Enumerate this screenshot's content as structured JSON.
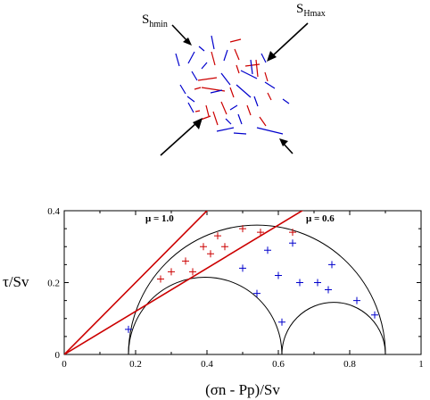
{
  "stress_labels": {
    "shmin": {
      "main": "S",
      "sub": "hmin"
    },
    "shmax": {
      "main": "S",
      "sub": "Hmax"
    }
  },
  "friction_labels": {
    "upper": "μ = 1.0",
    "lower": "μ = 0.6"
  },
  "colors": {
    "red": "#cc0000",
    "blue": "#0000cc",
    "axis": "#000000",
    "circle": "#000000"
  },
  "chart_data": {
    "type": "scatter",
    "title": "",
    "xlabel": "(σn - Pp)/Sv",
    "ylabel": "τ/Sv",
    "xlim": [
      0,
      1
    ],
    "ylim": [
      0,
      0.4
    ],
    "x_ticks": [
      "0",
      "0.2",
      "0.4",
      "0.6",
      "0.8",
      "1"
    ],
    "y_ticks": [
      "0",
      "0.2",
      "0.4"
    ],
    "friction_lines": [
      {
        "mu": 1.0,
        "color": "#cc0000"
      },
      {
        "mu": 0.6,
        "color": "#cc0000"
      }
    ],
    "mohr_circles": [
      {
        "center": 0.54,
        "radius": 0.36
      },
      {
        "center": 0.395,
        "radius": 0.215
      },
      {
        "center": 0.755,
        "radius": 0.145
      }
    ],
    "series": [
      {
        "color": "#cc0000",
        "x": [
          0.27,
          0.3,
          0.34,
          0.36,
          0.39,
          0.41,
          0.43,
          0.45,
          0.5,
          0.55,
          0.64
        ],
        "y": [
          0.21,
          0.23,
          0.26,
          0.23,
          0.3,
          0.28,
          0.33,
          0.3,
          0.35,
          0.34,
          0.34
        ]
      },
      {
        "color": "#0000cc",
        "x": [
          0.18,
          0.5,
          0.54,
          0.57,
          0.61,
          0.6,
          0.64,
          0.66,
          0.71,
          0.74,
          0.75,
          0.82,
          0.87
        ],
        "y": [
          0.07,
          0.24,
          0.17,
          0.29,
          0.09,
          0.22,
          0.31,
          0.2,
          0.2,
          0.18,
          0.25,
          0.15,
          0.11
        ]
      }
    ]
  }
}
